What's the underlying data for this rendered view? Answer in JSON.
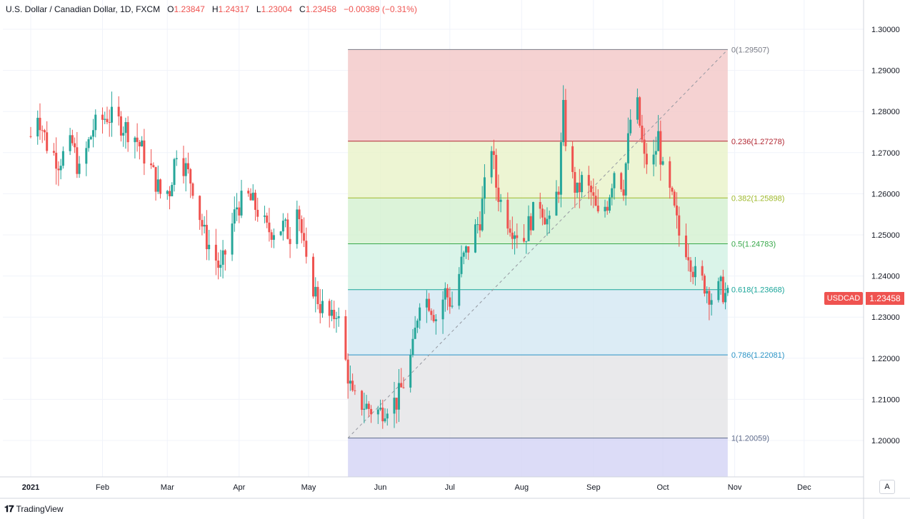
{
  "header": {
    "symbol": "U.S. Dollar / Canadian Dollar, 1D, FXCM",
    "open_label": "O",
    "open": "1.23847",
    "high_label": "H",
    "high": "1.24317",
    "low_label": "L",
    "low": "1.23004",
    "close_label": "C",
    "close": "1.23458",
    "change": "−0.00389 (−0.31%)"
  },
  "price_axis": {
    "ticks": [
      "1.30000",
      "1.29000",
      "1.28000",
      "1.27000",
      "1.26000",
      "1.25000",
      "1.24000",
      "1.23000",
      "1.22000",
      "1.21000",
      "1.20000"
    ],
    "last_price": "1.23458",
    "symbol_tag": "USDCAD",
    "auto_label": "A"
  },
  "brand": "TradingView",
  "colors": {
    "up": "#26a69a",
    "down": "#ef5350",
    "grid": "#f0f3fa",
    "axis": "#d1d4dc"
  },
  "chart_data": {
    "type": "candlestick",
    "x_ticks": [
      {
        "label": "2021",
        "date": "2021-01-01"
      },
      {
        "label": "Feb",
        "date": "2021-02-01"
      },
      {
        "label": "Mar",
        "date": "2021-03-01"
      },
      {
        "label": "Apr",
        "date": "2021-04-01"
      },
      {
        "label": "May",
        "date": "2021-05-01"
      },
      {
        "label": "Jun",
        "date": "2021-06-01"
      },
      {
        "label": "Jul",
        "date": "2021-07-01"
      },
      {
        "label": "Aug",
        "date": "2021-08-01"
      },
      {
        "label": "Sep",
        "date": "2021-09-01"
      },
      {
        "label": "Oct",
        "date": "2021-10-01"
      },
      {
        "label": "Nov",
        "date": "2021-11-01"
      },
      {
        "label": "Dec",
        "date": "2021-12-01"
      }
    ],
    "ylim": [
      1.1925,
      1.305
    ],
    "fibonacci": {
      "start": {
        "date": "2021-05-18",
        "price": 1.20059
      },
      "end": {
        "date": "2021-10-29",
        "price": 1.29507
      },
      "levels": [
        {
          "ratio": 0,
          "label": "0(1.29507)",
          "price": 1.29507,
          "line": "#787b86",
          "fill": "#f2c7c7"
        },
        {
          "ratio": 0.236,
          "label": "0.236(1.27278)",
          "price": 1.27278,
          "line": "#b22833",
          "fill": "#e8f2c8"
        },
        {
          "ratio": 0.382,
          "label": "0.382(1.25898)",
          "price": 1.25898,
          "line": "#9fb92c",
          "fill": "#d3f0cf"
        },
        {
          "ratio": 0.5,
          "label": "0.5(1.24783)",
          "price": 1.24783,
          "line": "#38a84a",
          "fill": "#d1f1e4"
        },
        {
          "ratio": 0.618,
          "label": "0.618(1.23668)",
          "price": 1.23668,
          "line": "#1aa59a",
          "fill": "#d3e7f3"
        },
        {
          "ratio": 0.786,
          "label": "0.786(1.22081)",
          "price": 1.22081,
          "line": "#2a93c5",
          "fill": "#e4e4e6"
        },
        {
          "ratio": 1,
          "label": "1(1.20059)",
          "price": 1.20059,
          "line": "#5d6a8a",
          "fill": "#d3d3f5"
        }
      ]
    },
    "keypoints": [
      [
        "2021-01-01",
        1.274
      ],
      [
        "2021-01-04",
        1.28
      ],
      [
        "2021-01-08",
        1.272
      ],
      [
        "2021-01-13",
        1.268
      ],
      [
        "2021-01-19",
        1.272
      ],
      [
        "2021-01-22",
        1.265
      ],
      [
        "2021-01-28",
        1.276
      ],
      [
        "2021-02-03",
        1.279
      ],
      [
        "2021-02-09",
        1.277
      ],
      [
        "2021-02-15",
        1.274
      ],
      [
        "2021-02-22",
        1.266
      ],
      [
        "2021-02-26",
        1.26
      ],
      [
        "2021-03-02",
        1.261
      ],
      [
        "2021-03-05",
        1.271
      ],
      [
        "2021-03-09",
        1.266
      ],
      [
        "2021-03-12",
        1.262
      ],
      [
        "2021-03-17",
        1.25
      ],
      [
        "2021-03-22",
        1.244
      ],
      [
        "2021-03-24",
        1.241
      ],
      [
        "2021-03-31",
        1.257
      ],
      [
        "2021-04-05",
        1.259
      ],
      [
        "2021-04-09",
        1.256
      ],
      [
        "2021-04-13",
        1.251
      ],
      [
        "2021-04-20",
        1.252
      ],
      [
        "2021-04-23",
        1.25
      ],
      [
        "2021-04-26",
        1.259
      ],
      [
        "2021-04-30",
        1.242
      ],
      [
        "2021-05-06",
        1.233
      ],
      [
        "2021-05-11",
        1.229
      ],
      [
        "2021-05-13",
        1.232
      ],
      [
        "2021-05-17",
        1.219
      ],
      [
        "2021-05-20",
        1.21
      ],
      [
        "2021-05-24",
        1.209
      ],
      [
        "2021-05-28",
        1.2075
      ],
      [
        "2021-06-01",
        1.207
      ],
      [
        "2021-06-04",
        1.209
      ],
      [
        "2021-06-08",
        1.2095
      ],
      [
        "2021-06-11",
        1.214
      ],
      [
        "2021-06-15",
        1.222
      ],
      [
        "2021-06-18",
        1.235
      ],
      [
        "2021-06-22",
        1.234
      ],
      [
        "2021-06-25",
        1.23
      ],
      [
        "2021-06-29",
        1.236
      ],
      [
        "2021-07-02",
        1.233
      ],
      [
        "2021-07-06",
        1.243
      ],
      [
        "2021-07-09",
        1.247
      ],
      [
        "2021-07-14",
        1.254
      ],
      [
        "2021-07-19",
        1.272
      ],
      [
        "2021-07-21",
        1.262
      ],
      [
        "2021-07-24",
        1.256
      ],
      [
        "2021-07-28",
        1.252
      ],
      [
        "2021-08-02",
        1.249
      ],
      [
        "2021-08-05",
        1.254
      ],
      [
        "2021-08-09",
        1.258
      ],
      [
        "2021-08-13",
        1.252
      ],
      [
        "2021-08-17",
        1.262
      ],
      [
        "2021-08-19",
        1.28
      ],
      [
        "2021-08-21",
        1.267
      ],
      [
        "2021-08-25",
        1.26
      ],
      [
        "2021-08-27",
        1.263
      ],
      [
        "2021-08-31",
        1.26
      ],
      [
        "2021-09-03",
        1.254
      ],
      [
        "2021-09-07",
        1.258
      ],
      [
        "2021-09-10",
        1.266
      ],
      [
        "2021-09-14",
        1.262
      ],
      [
        "2021-09-17",
        1.278
      ],
      [
        "2021-09-20",
        1.281
      ],
      [
        "2021-09-23",
        1.268
      ],
      [
        "2021-09-27",
        1.268
      ],
      [
        "2021-09-29",
        1.274
      ],
      [
        "2021-10-01",
        1.265
      ],
      [
        "2021-10-05",
        1.258
      ],
      [
        "2021-10-08",
        1.25
      ],
      [
        "2021-10-12",
        1.246
      ],
      [
        "2021-10-15",
        1.24
      ],
      [
        "2021-10-19",
        1.238
      ],
      [
        "2021-10-22",
        1.235
      ],
      [
        "2021-10-26",
        1.237
      ],
      [
        "2021-10-29",
        1.2346
      ]
    ]
  }
}
